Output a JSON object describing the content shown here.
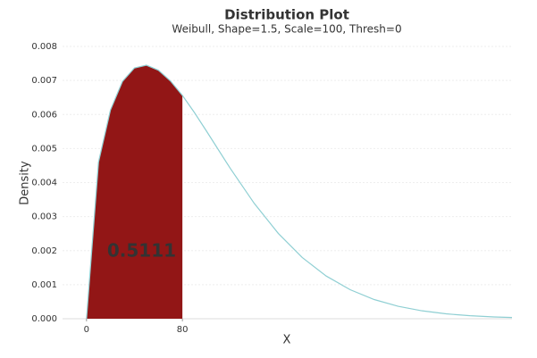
{
  "chart_data": {
    "type": "area",
    "title": "Distribution Plot",
    "subtitle": "Weibull, Shape=1.5, Scale=100, Thresh=0",
    "xlabel": "X",
    "ylabel": "Density",
    "x": [
      0,
      10,
      20,
      30,
      40,
      50,
      60,
      70,
      80,
      90,
      100,
      120,
      140,
      160,
      180,
      200,
      220,
      240,
      260,
      280,
      300,
      320,
      340,
      355
    ],
    "series": [
      {
        "name": "Weibull",
        "color": "#8fcfd3",
        "values": [
          0,
          0.004596,
          0.006134,
          0.006971,
          0.007367,
          0.007448,
          0.0073,
          0.006987,
          0.006561,
          0.006059,
          0.005518,
          0.004414,
          0.003386,
          0.002507,
          0.001799,
          0.001254,
          0.000852,
          0.000564,
          0.000366,
          0.000232,
          0.000144,
          8.77e-05,
          5.25e-05,
          3.52e-05
        ]
      }
    ],
    "shaded_area": {
      "xmax": 80,
      "probability": 0.5111,
      "color": "#921616"
    },
    "xlim": [
      -20,
      355
    ],
    "xticks": [
      0,
      80
    ],
    "ylim": [
      0,
      0.008
    ],
    "yticks": [
      {
        "value": 0,
        "label": "0.000"
      },
      {
        "value": 0.001,
        "label": "0.001"
      },
      {
        "value": 0.002,
        "label": "0.002"
      },
      {
        "value": 0.003,
        "label": "0.003"
      },
      {
        "value": 0.004,
        "label": "0.004"
      },
      {
        "value": 0.005,
        "label": "0.005"
      },
      {
        "value": 0.006,
        "label": "0.006"
      },
      {
        "value": 0.007,
        "label": "0.007"
      },
      {
        "value": 0.008,
        "label": "0.008"
      }
    ],
    "grid": true
  }
}
